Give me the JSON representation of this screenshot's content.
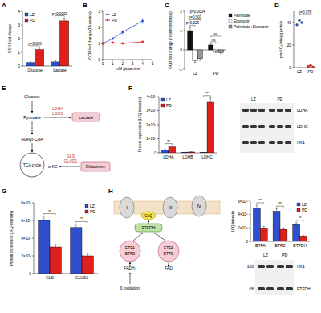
{
  "chart_data": [
    {
      "type": "bar",
      "title": "A",
      "y_label": "OCR Fold change",
      "categories": [
        "Glucose",
        "Lactate"
      ],
      "series": [
        {
          "name": "LZ",
          "color": "#2e4fd1",
          "values": [
            0.25,
            0.3
          ],
          "errors": [
            0.05,
            0.08
          ]
        },
        {
          "name": "PD",
          "color": "#e0201b",
          "values": [
            1.2,
            3.3
          ],
          "errors": [
            0.1,
            0.2
          ]
        }
      ],
      "ylim": [
        0,
        4
      ],
      "yticks": [
        0,
        1,
        2,
        3,
        4
      ],
      "legend": "upper left",
      "annotations": [
        "p=0.006",
        "p=0.0000"
      ]
    },
    {
      "type": "line",
      "title": "B",
      "y_label": "OCR fold change (Glutamine)",
      "x_label": "mM glutamine",
      "x": [
        0,
        1,
        2,
        4
      ],
      "series": [
        {
          "name": "LZ",
          "color": "#2e4fd1",
          "marker": "circle",
          "values": [
            1.0,
            1.3,
            1.7,
            2.4
          ],
          "errors": [
            0.05,
            0.1,
            0.15,
            0.2
          ]
        },
        {
          "name": "PD",
          "color": "#e0201b",
          "marker": "circle",
          "values": [
            1.0,
            1.05,
            1.0,
            1.1
          ],
          "errors": [
            0.05,
            0.05,
            0.05,
            0.05
          ]
        }
      ],
      "xlim": [
        0,
        5
      ],
      "xticks": [
        0,
        1,
        2,
        3,
        4,
        5
      ],
      "ylim": [
        0,
        3
      ],
      "yticks": [
        0,
        1,
        2,
        3
      ],
      "legend": "upper left"
    },
    {
      "type": "bar",
      "title": "C",
      "y_label": "OCR fold change (Treatment/Basal)",
      "categories": [
        "LZ",
        "PD"
      ],
      "series": [
        {
          "name": "Palmitate",
          "color": "#111111",
          "values": [
            1.0,
            0.25
          ],
          "errors": [
            0.15,
            0.05
          ]
        },
        {
          "name": "Etomoxir",
          "color": "#ffffff",
          "values": [
            -0.55,
            -0.1
          ],
          "errors": [
            0.1,
            0.05
          ]
        },
        {
          "name": "Palmitate+Etomoxir",
          "color": "#999999",
          "values": [
            -0.45,
            -0.15
          ],
          "errors": [
            0.1,
            0.05
          ]
        }
      ],
      "ylim": [
        -1,
        2
      ],
      "yticks": [
        -1,
        0,
        1,
        2
      ],
      "legend": "right",
      "annotations": [
        [
          "p=0.029",
          "p=0.001",
          "p=0.0004"
        ],
        [
          "ns",
          "ns"
        ]
      ]
    },
    {
      "type": "dot",
      "title": "D",
      "y_label": "pmol O₂/min/µg protein",
      "categories": [
        "LZ",
        "PD"
      ],
      "values": [
        [
          38,
          42,
          40
        ],
        [
          1,
          2,
          0.5
        ]
      ],
      "colors": [
        "#2e4fd1",
        "#e0201b"
      ],
      "ylim": [
        0,
        50
      ],
      "yticks": [
        0,
        20,
        40
      ],
      "annotations": [
        "p=0.076"
      ]
    },
    {
      "type": "bar",
      "title": "F",
      "y_label": "Protein expression (LFQ intensity)",
      "categories": [
        "LDHA",
        "LDHB",
        "LDHC"
      ],
      "series": [
        {
          "name": "LZ",
          "color": "#2e4fd1",
          "values": [
            200000000,
            40000000,
            20000000
          ],
          "errors": [
            40000000,
            10000000,
            5000000
          ]
        },
        {
          "name": "PD",
          "color": "#e0201b",
          "values": [
            420000000,
            60000000,
            3600000000
          ],
          "errors": [
            60000000,
            10000000,
            300000000
          ]
        }
      ],
      "ylim": [
        0,
        4000000000
      ],
      "yticks": [
        0,
        {
          "value": 1000000000,
          "label": "1×10⁹"
        },
        {
          "value": 2000000000,
          "label": "2×10⁹"
        },
        {
          "value": 3000000000,
          "label": "3×10⁹"
        },
        {
          "value": 4000000000,
          "label": "4×10⁹"
        }
      ],
      "legend": "upper left",
      "annotations": [
        "**",
        null,
        "**"
      ]
    },
    {
      "type": "bar",
      "title": "G",
      "y_label": "Protein expression (LFQ intensity)",
      "categories": [
        "GLS",
        "GLUD1"
      ],
      "series": [
        {
          "name": "LZ",
          "color": "#2e4fd1",
          "values": [
            600000000,
            520000000
          ],
          "errors": [
            50000000,
            40000000
          ]
        },
        {
          "name": "PD",
          "color": "#e0201b",
          "values": [
            300000000,
            200000000
          ],
          "errors": [
            30000000,
            20000000
          ]
        }
      ],
      "ylim": [
        0,
        800000000
      ],
      "yticks": [
        0,
        {
          "value": 200000000,
          "label": "2×10⁸"
        },
        {
          "value": 400000000,
          "label": "4×10⁸"
        },
        {
          "value": 600000000,
          "label": "6×10⁸"
        },
        {
          "value": 800000000,
          "label": "8×10⁸"
        }
      ],
      "legend": "upper right",
      "annotations": [
        "**",
        "**"
      ]
    },
    {
      "type": "bar",
      "y_label": "LFQ intensity",
      "categories": [
        "ETFA",
        "ETFB",
        "ETFDH"
      ],
      "series": [
        {
          "name": "LZ",
          "color": "#2e4fd1",
          "values": [
            500000000,
            450000000,
            250000000
          ],
          "errors": [
            40000000,
            40000000,
            30000000
          ]
        },
        {
          "name": "PD",
          "color": "#e0201b",
          "values": [
            200000000,
            180000000,
            80000000
          ],
          "errors": [
            20000000,
            20000000,
            10000000
          ]
        }
      ],
      "ylim": [
        0,
        600000000
      ],
      "yticks": [
        0,
        {
          "value": 200000000,
          "label": "2×10⁸"
        },
        {
          "value": 400000000,
          "label": "4×10⁸"
        },
        {
          "value": 600000000,
          "label": "6×10⁸"
        }
      ],
      "legend": "upper right",
      "annotations": [
        "**",
        "**",
        "**"
      ]
    }
  ],
  "diagrams": {
    "E": {
      "title": "E",
      "nodes": {
        "glucose": "Glucose",
        "pyruvate": "Pyruvate",
        "lactate": "Lactate",
        "acetyl_coa": "Acetyl-CoA",
        "tca": "TCA cycle",
        "akg": "α-KG",
        "glutamine": "Glutamine"
      },
      "enzymes": {
        "ldh": [
          "LDHA",
          "LDHC"
        ],
        "glutaminolysis": [
          "GLS",
          "GLUD1"
        ]
      }
    },
    "H": {
      "title": "H",
      "complexes": [
        "I",
        "III",
        "IV"
      ],
      "coq": "CoQ",
      "etfdh": "ETFDH",
      "etf": [
        [
          "ETFA",
          "ETFB"
        ],
        [
          "ETFA",
          "ETFB"
        ]
      ],
      "cofactors": [
        "FADH₂",
        "FAD"
      ],
      "pathway": "β oxidation"
    }
  },
  "blots": {
    "F": {
      "lanes": [
        "LZ",
        "PD"
      ],
      "rows": [
        "LDHA",
        "LDHC",
        "HK1"
      ]
    },
    "H": {
      "lanes": [
        "LZ",
        "PD"
      ],
      "rows": [
        {
          "label": "HK1",
          "marker": 100
        },
        {
          "label": "ETFDH",
          "marker": 68
        }
      ]
    }
  }
}
